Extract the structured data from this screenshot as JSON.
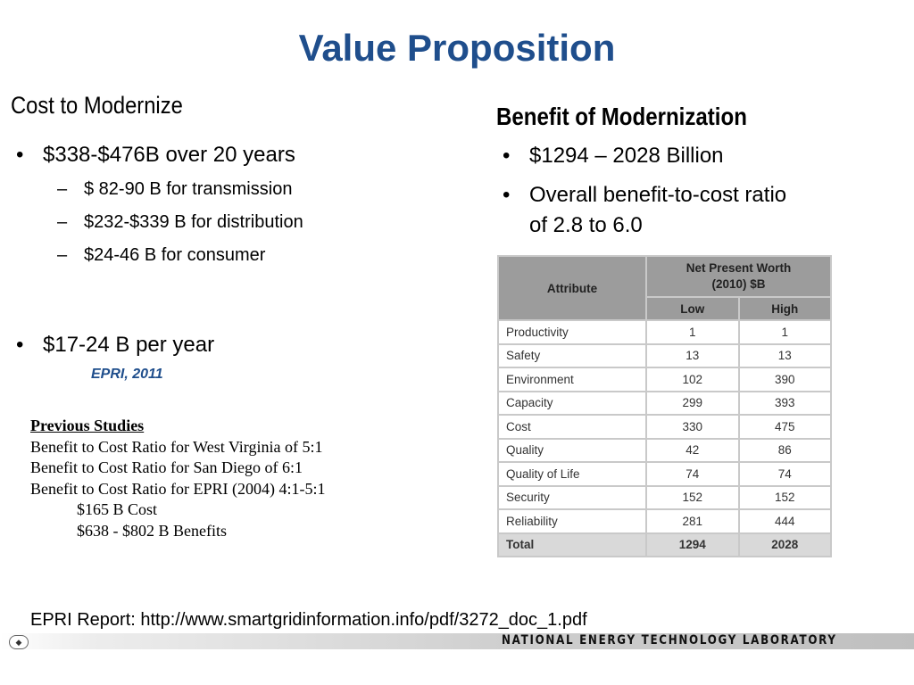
{
  "title": "Value Proposition",
  "left": {
    "heading": "Cost to Modernize",
    "bullet1": "$338-$476B over 20 years",
    "subs": [
      "$ 82-90 B for transmission",
      "$232-$339 B for distribution",
      "$24-46 B for consumer"
    ],
    "bullet2": "$17-24 B per year",
    "citation": "EPRI, 2011"
  },
  "previous_studies": {
    "title": "Previous Studies",
    "lines": [
      "Benefit to Cost Ratio for West Virginia of 5:1",
      "Benefit to Cost Ratio for San Diego of 6:1",
      "Benefit to Cost Ratio for EPRI (2004) 4:1-5:1"
    ],
    "indented": [
      "$165 B Cost",
      "$638 - $802 B Benefits"
    ]
  },
  "right": {
    "heading": "Benefit of Modernization",
    "bullet1": "$1294 – 2028 Billion",
    "bullet2_line1": "Overall benefit-to-cost ratio",
    "bullet2_line2": "of 2.8 to 6.0"
  },
  "table": {
    "attr_header": "Attribute",
    "npw_header_line1": "Net Present Worth",
    "npw_header_line2": "(2010) $B",
    "low_header": "Low",
    "high_header": "High",
    "rows": [
      {
        "attribute": "Productivity",
        "low": "1",
        "high": "1"
      },
      {
        "attribute": "Safety",
        "low": "13",
        "high": "13"
      },
      {
        "attribute": "Environment",
        "low": "102",
        "high": "390"
      },
      {
        "attribute": "Capacity",
        "low": "299",
        "high": "393"
      },
      {
        "attribute": "Cost",
        "low": "330",
        "high": "475"
      },
      {
        "attribute": "Quality",
        "low": "42",
        "high": "86"
      },
      {
        "attribute": "Quality of Life",
        "low": "74",
        "high": "74"
      },
      {
        "attribute": "Security",
        "low": "152",
        "high": "152"
      },
      {
        "attribute": "Reliability",
        "low": "281",
        "high": "444"
      },
      {
        "attribute": "Total",
        "low": "1294",
        "high": "2028"
      }
    ]
  },
  "footer": {
    "report": "EPRI Report: http://www.smartgridinformation.info/pdf/3272_doc_1.pdf",
    "lab": "NATIONAL ENERGY TECHNOLOGY LABORATORY"
  },
  "colors": {
    "title": "#1f4e8c",
    "table_header": "#9c9c9c",
    "total_row": "#d9d9d9"
  }
}
